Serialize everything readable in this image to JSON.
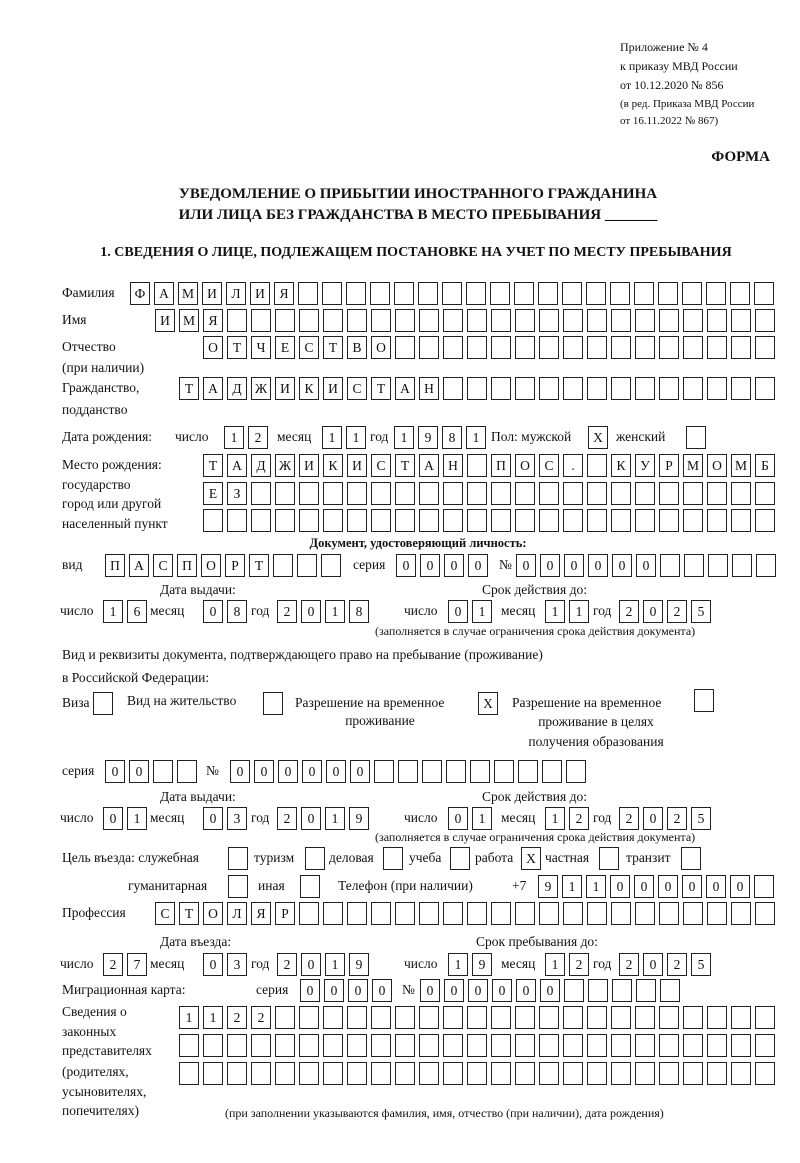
{
  "header": {
    "appendix": [
      "Приложение № 4",
      "к приказу МВД России",
      "от 10.12.2020 № 856"
    ],
    "amendment": [
      "(в ред. Приказа МВД России",
      "от 16.11.2022 № 867)"
    ],
    "form_label": "ФОРМА",
    "title_line1": "УВЕДОМЛЕНИЕ О ПРИБЫТИИ ИНОСТРАННОГО ГРАЖДАНИНА",
    "title_line2": "ИЛИ ЛИЦА БЕЗ ГРАЖДАНСТВА В МЕСТО ПРЕБЫВАНИЯ _______",
    "section1": "1. СВЕДЕНИЯ О ЛИЦЕ, ПОДЛЕЖАЩЕМ ПОСТАНОВКЕ НА УЧЕТ ПО МЕСТУ ПРЕБЫВАНИЯ"
  },
  "person": {
    "surname": {
      "label": "Фамилия",
      "value": "ФАМИЛИЯ"
    },
    "name": {
      "label": "Имя",
      "value": "ИМЯ"
    },
    "patronymic": {
      "label": "Отчество",
      "label2": "(при наличии)",
      "value": "ОТЧЕСТВО"
    },
    "citizenship": {
      "label": "Гражданство,",
      "label2": "подданство",
      "value": "ТАДЖИКИСТАН"
    },
    "birth_date": {
      "label": "Дата рождения:",
      "day_label": "число",
      "day": "12",
      "month_label": "месяц",
      "month": "11",
      "year_label": "год",
      "year": "1981"
    },
    "sex": {
      "label_male": "Пол: мужской",
      "male": "X",
      "label_female": "женский",
      "female": ""
    },
    "birth_place": {
      "labels": [
        "Место рождения:",
        "государство",
        "город или другой",
        "населенный пункт"
      ],
      "row1": "ТАДЖИКИСТАН ПОС. КУРМОМБ",
      "row2": "ЕЗ",
      "row3": ""
    }
  },
  "identity_doc": {
    "heading": "Документ, удостоверяющий личность:",
    "type_label": "вид",
    "type": "ПАСПОРТ",
    "series_label": "серия",
    "series": "0000",
    "number_label": "№",
    "number": "000000",
    "issue_label": "Дата выдачи:",
    "issue": {
      "day": "16",
      "month": "08",
      "year": "2018"
    },
    "valid_label": "Срок действия до:",
    "valid": {
      "day": "01",
      "month": "11",
      "year": "2025"
    },
    "note": "(заполняется в случае ограничения срока действия документа)"
  },
  "labels": {
    "day": "число",
    "month": "месяц",
    "year": "год"
  },
  "stay_doc": {
    "heading1": "Вид и реквизиты документа, подтверждающего право на пребывание (проживание)",
    "heading2": "в Российской Федерации:",
    "visa_label": "Виза",
    "visa": "",
    "residence_label": "Вид на жительство",
    "residence": "",
    "trp_label1": "Разрешение на временное",
    "trp_label2": "проживание",
    "trp": "X",
    "trp_edu_label1": "Разрешение на временное",
    "trp_edu_label2": "проживание в целях",
    "trp_edu_label3": "получения образования",
    "trp_edu": "",
    "series_label": "серия",
    "series": "00",
    "number_label": "№",
    "number": "000000",
    "issue_label": "Дата выдачи:",
    "issue": {
      "day": "01",
      "month": "03",
      "year": "2019"
    },
    "valid_label": "Срок действия до:",
    "valid": {
      "day": "01",
      "month": "12",
      "year": "2025"
    },
    "note": "(заполняется в случае ограничения срока действия документа)"
  },
  "purpose": {
    "label": "Цель въезда: служебная",
    "official": "",
    "tourism_label": "туризм",
    "tourism": "",
    "business_label": "деловая",
    "business": "",
    "study_label": "учеба",
    "study": "",
    "work_label": "работа",
    "work": "X",
    "private_label": "частная",
    "private": "",
    "transit_label": "транзит",
    "transit": "",
    "humanitarian_label": "гуманитарная",
    "humanitarian": "",
    "other_label": "иная",
    "other": ""
  },
  "phone": {
    "label": "Телефон (при наличии)",
    "prefix": "+7",
    "value": "911000000"
  },
  "profession": {
    "label": "Профессия",
    "value": "СТОЛЯР"
  },
  "entry": {
    "entry_label": "Дата въезда:",
    "entry": {
      "day": "27",
      "month": "03",
      "year": "2019"
    },
    "stay_until_label": "Срок пребывания до:",
    "stay_until": {
      "day": "19",
      "month": "12",
      "year": "2025"
    }
  },
  "migration_card": {
    "label": "Миграционная карта:",
    "series_label": "серия",
    "series": "0000",
    "number_label": "№",
    "number": "000000"
  },
  "representatives": {
    "labels": [
      "Сведения о",
      "законных",
      "представителях",
      "(родителях,",
      "усыновителях,",
      "попечителях)"
    ],
    "row1": "1122",
    "row2": "",
    "row3": "",
    "note": "(при заполнении указываются фамилия, имя, отчество (при наличии), дата рождения)"
  }
}
